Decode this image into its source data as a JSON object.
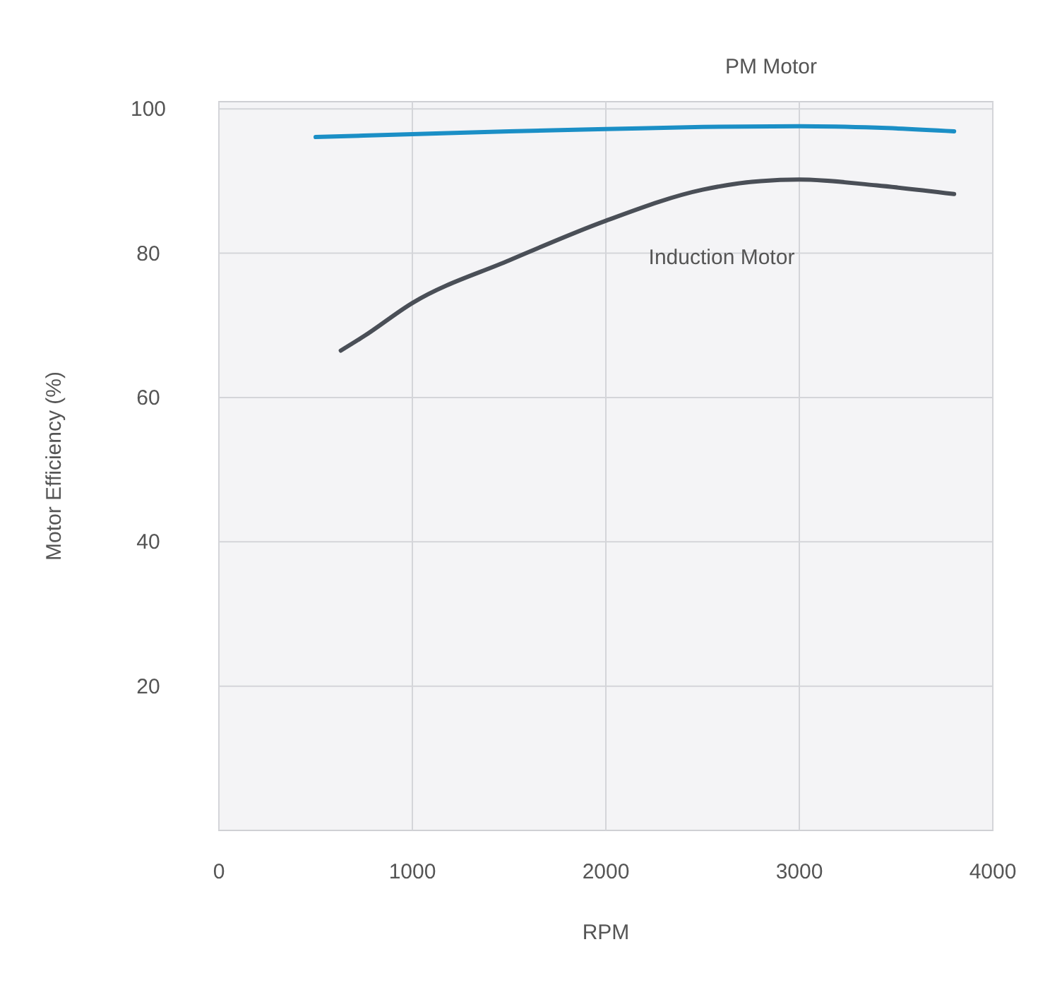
{
  "chart_data": {
    "type": "line",
    "xlabel": "RPM",
    "ylabel": "Motor Efficiency (%)",
    "xlim": [
      0,
      4000
    ],
    "ylim": [
      0,
      101
    ],
    "xticks": [
      0,
      1000,
      2000,
      3000,
      4000
    ],
    "yticks": [
      20,
      40,
      60,
      80,
      100
    ],
    "grid": true,
    "marker": "none",
    "line_style": "solid",
    "series": [
      {
        "name": "PM Motor",
        "color": "#1b8fc6",
        "x": [
          500,
          1000,
          1500,
          2000,
          2500,
          3000,
          3400,
          3800
        ],
        "values": [
          96.1,
          96.5,
          96.9,
          97.2,
          97.5,
          97.6,
          97.4,
          96.9
        ]
      },
      {
        "name": "Induction Motor",
        "color": "#4a4f57",
        "x": [
          630,
          750,
          1000,
          1500,
          2000,
          2500,
          2800,
          3000,
          3400,
          3800
        ],
        "values": [
          66.5,
          68.5,
          73.1,
          79,
          84.5,
          88.8,
          90,
          90.2,
          89.4,
          88.2
        ]
      }
    ]
  }
}
